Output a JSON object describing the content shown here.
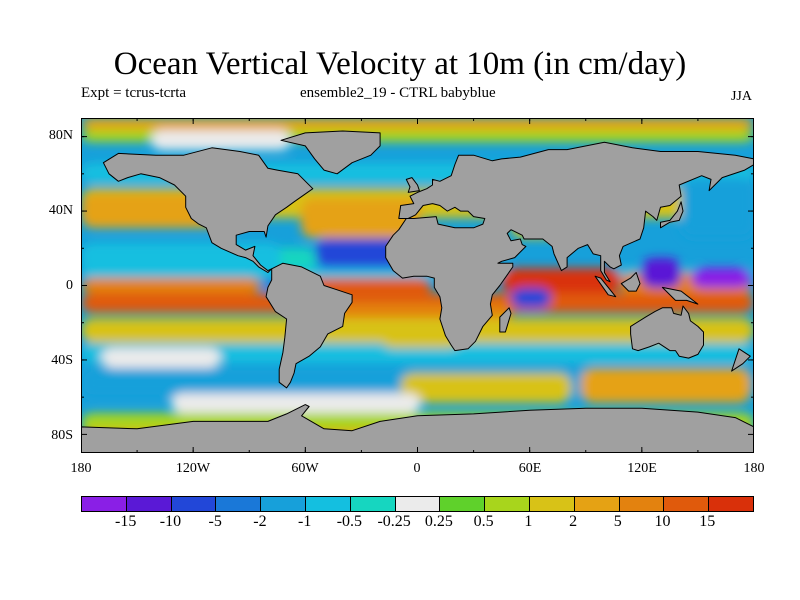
{
  "header": {
    "title": "Ocean Vertical Velocity at 10m (in cm/day)",
    "left_subtitle": "Expt = tcrus-tcrta",
    "center_subtitle": "ensemble2_19 - CTRL babyblue",
    "season": "JJA"
  },
  "axes": {
    "y_ticks": [
      "80N",
      "40N",
      "0",
      "40S",
      "80S"
    ],
    "x_ticks": [
      "180",
      "120W",
      "60W",
      "0",
      "60E",
      "120E",
      "180"
    ]
  },
  "colorbar": {
    "labels": [
      "-15",
      "-10",
      "-5",
      "-2",
      "-1",
      "-0.5",
      "-0.25",
      "0.25",
      "0.5",
      "1",
      "2",
      "5",
      "10",
      "15"
    ],
    "colors": [
      "#8a1fe6",
      "#5a19d6",
      "#2247d8",
      "#1a78d8",
      "#17a0da",
      "#14bfe0",
      "#16d6c0",
      "#ebebeb",
      "#5fd12b",
      "#a8d51c",
      "#d8c217",
      "#e5a214",
      "#e3820f",
      "#e05a0c",
      "#d9300a"
    ]
  },
  "map": {
    "land_color": "#a0a0a0",
    "coast_color": "#000000"
  }
}
